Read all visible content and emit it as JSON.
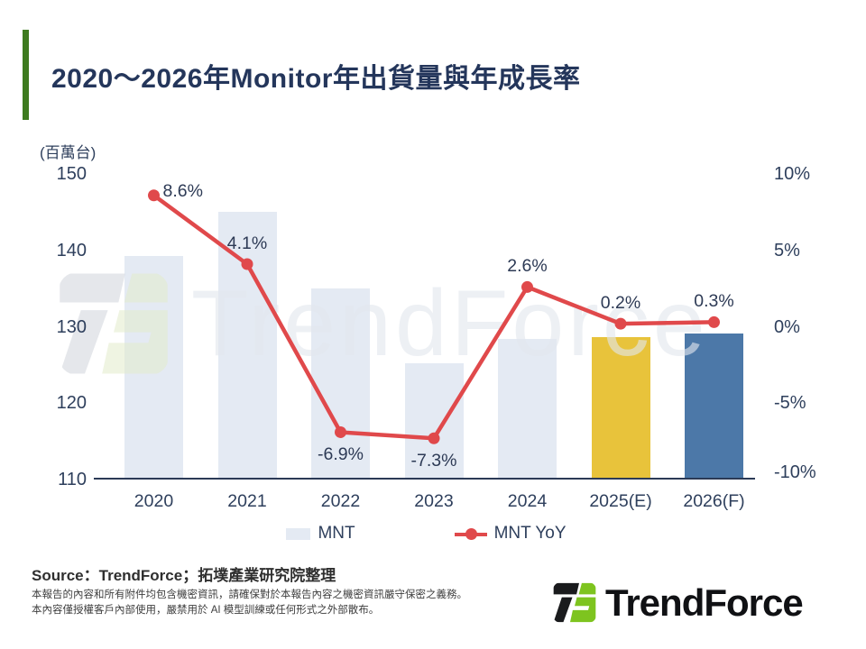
{
  "title": "2020～2026年Monitor年出貨量與年成長率",
  "watermark": {
    "text": "TrendForce"
  },
  "source": "Source：TrendForce；拓墣產業研究院整理",
  "disclaimer": [
    "本報告的內容和所有附件均包含機密資訊，請確保對於本報告內容之機密資訊嚴守保密之義務。",
    "本內容僅授權客戶內部使用，嚴禁用於 AI 模型訓練或任何形式之外部散布。"
  ],
  "logo_text": "TrendForce",
  "colors": {
    "accent_green": "#3E7B1F",
    "title_navy": "#24365B",
    "axis_text": "#2E3F5C",
    "bar_light": "#E4EAF3",
    "bar_yellow": "#E8C33B",
    "bar_blue": "#4C78A8",
    "line_red": "#E0494B",
    "logo_black": "#1A1B1D",
    "logo_green": "#7EC41F"
  },
  "chart_data": {
    "type": "bar",
    "subtype": "combo-bar-line-dual-axis",
    "title": "2020～2026年Monitor年出貨量與年成長率",
    "categories": [
      "2020",
      "2021",
      "2022",
      "2023",
      "2024",
      "2025(E)",
      "2026(F)"
    ],
    "series": [
      {
        "name": "MNT",
        "type": "bar",
        "unit": "百萬台",
        "axis": "left",
        "values": [
          139.3,
          145.0,
          135.0,
          125.2,
          128.4,
          128.7,
          129.1
        ],
        "colors": [
          "#E4EAF3",
          "#E4EAF3",
          "#E4EAF3",
          "#E4EAF3",
          "#E4EAF3",
          "#E8C33B",
          "#4C78A8"
        ]
      },
      {
        "name": "MNT YoY",
        "type": "line",
        "unit": "%",
        "axis": "right",
        "values": [
          8.6,
          4.1,
          -6.9,
          -7.3,
          2.6,
          0.2,
          0.3
        ],
        "labels": [
          "8.6%",
          "4.1%",
          "-6.9%",
          "-7.3%",
          "2.6%",
          "0.2%",
          "0.3%"
        ],
        "color": "#E0494B"
      }
    ],
    "ylabel_left": "(百萬台)",
    "left_axis": {
      "ticks": [
        "150",
        "140",
        "130",
        "120",
        "110"
      ],
      "range": [
        110,
        150
      ]
    },
    "right_axis": {
      "ticks": [
        "10%",
        "5%",
        "0%",
        "-5%",
        "-10%"
      ],
      "range": [
        -10,
        10
      ]
    },
    "legend": [
      "MNT",
      "MNT YoY"
    ],
    "legend_position": "bottom",
    "grid": false
  }
}
